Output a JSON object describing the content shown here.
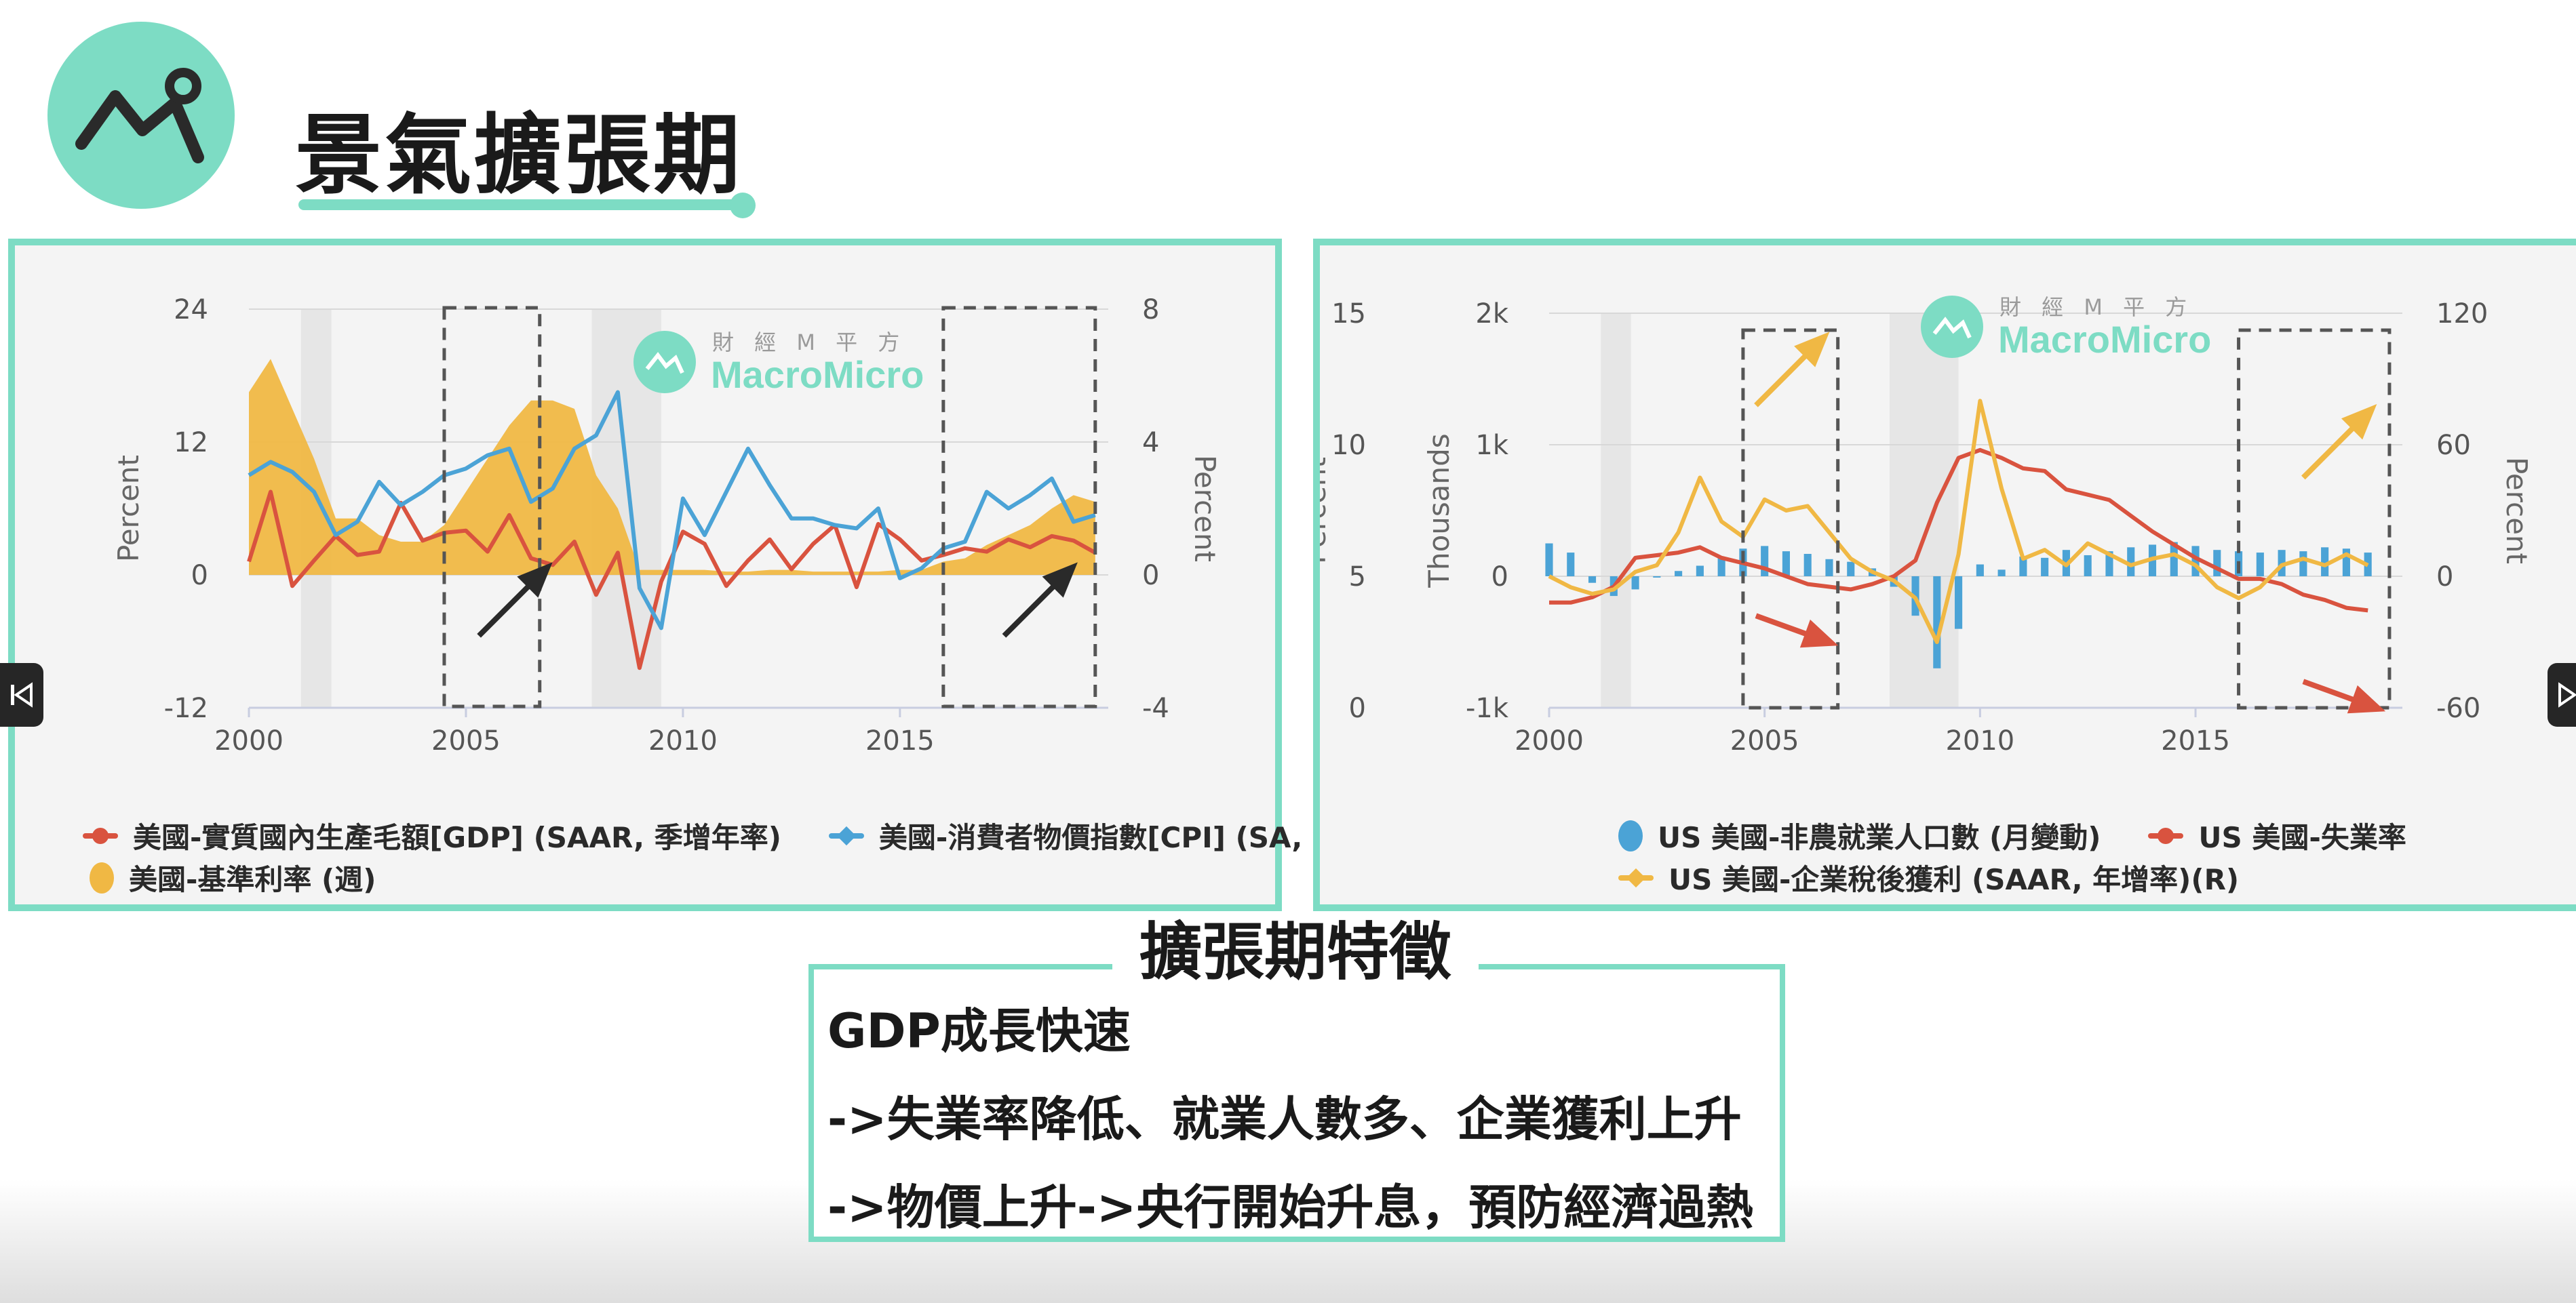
{
  "header": {
    "title": "景氣擴張期",
    "logo_icon": "chart-trend-icon"
  },
  "brand": {
    "name_cn": "財 經 M 平 方",
    "name_en": "MacroMicro",
    "accent": "#7ddcc4"
  },
  "features": {
    "title": "擴張期特徵",
    "lines": [
      "GDP成長快速",
      "->失業率降低、就業人數多、企業獲利上升",
      "->物價上升->央行開始升息，預防經濟過熱"
    ]
  },
  "nav": {
    "prev_icon": "skip-previous-icon",
    "next_icon": "skip-next-icon"
  },
  "chart_data": [
    {
      "type": "line",
      "x": [
        2000.0,
        2000.5,
        2001.0,
        2001.5,
        2002.0,
        2002.5,
        2003.0,
        2003.5,
        2004.0,
        2004.5,
        2005.0,
        2005.5,
        2006.0,
        2006.5,
        2007.0,
        2007.5,
        2008.0,
        2008.5,
        2009.0,
        2009.5,
        2010.0,
        2010.5,
        2011.0,
        2011.5,
        2012.0,
        2012.5,
        2013.0,
        2013.5,
        2014.0,
        2014.5,
        2015.0,
        2015.5,
        2016.0,
        2016.5,
        2017.0,
        2017.5,
        2018.0,
        2018.5,
        2019.0,
        2019.5
      ],
      "xlabel": "",
      "ylabel": "Percent",
      "y2label": "Percent",
      "xlim": [
        2000,
        2019.8
      ],
      "xticks": [
        "2000",
        "2005",
        "2010",
        "2015"
      ],
      "ylim": [
        -12,
        24
      ],
      "yticks": [
        "24",
        "12",
        "0",
        "-12"
      ],
      "y2lim": [
        -4,
        8
      ],
      "y2ticks": [
        "8",
        "4",
        "0",
        "-4"
      ],
      "recessions": [
        [
          2001.2,
          2001.9
        ],
        [
          2007.9,
          2009.5
        ]
      ],
      "highlight_boxes": [
        [
          2004.5,
          2006.7
        ],
        [
          2016.0,
          2019.5
        ]
      ],
      "series": [
        {
          "name": "美國-實質國內生產毛額[GDP] (SAAR, 季增年率)",
          "color": "#d9533f",
          "axis": "left",
          "values": [
            1.2,
            7.5,
            -1.0,
            1.3,
            3.5,
            1.8,
            2.1,
            6.5,
            3.1,
            3.8,
            4.0,
            2.1,
            5.4,
            1.5,
            0.9,
            3.0,
            -1.8,
            2.0,
            -8.4,
            -0.6,
            3.9,
            2.8,
            -1.0,
            1.3,
            3.2,
            0.5,
            2.8,
            4.5,
            -1.1,
            4.6,
            3.2,
            1.3,
            1.8,
            2.4,
            2.1,
            3.2,
            2.5,
            3.5,
            3.1,
            2.0
          ]
        },
        {
          "name": "美國-消費者物價指數[CPI] (SA, 年增率)",
          "color": "#4ba3d6",
          "axis": "right",
          "values": [
            3.0,
            3.4,
            3.1,
            2.5,
            1.2,
            1.6,
            2.8,
            2.1,
            2.5,
            3.0,
            3.2,
            3.6,
            3.8,
            2.2,
            2.6,
            3.8,
            4.2,
            5.5,
            -0.4,
            -1.6,
            2.3,
            1.2,
            2.5,
            3.8,
            2.7,
            1.7,
            1.7,
            1.5,
            1.4,
            2.0,
            -0.1,
            0.2,
            0.8,
            1.0,
            2.5,
            2.0,
            2.4,
            2.9,
            1.6,
            1.8
          ]
        },
        {
          "name": "美國-基準利率 (週)",
          "color": "#f0b844",
          "axis": "right",
          "kind": "area",
          "values": [
            5.5,
            6.5,
            5.0,
            3.5,
            1.7,
            1.7,
            1.2,
            1.0,
            1.0,
            1.5,
            2.5,
            3.5,
            4.5,
            5.25,
            5.25,
            5.0,
            3.0,
            2.0,
            0.15,
            0.15,
            0.15,
            0.15,
            0.1,
            0.1,
            0.15,
            0.15,
            0.1,
            0.1,
            0.1,
            0.1,
            0.15,
            0.15,
            0.4,
            0.5,
            0.9,
            1.2,
            1.5,
            2.0,
            2.4,
            2.2
          ]
        }
      ],
      "annotations": [
        {
          "type": "arrow-up",
          "color": "#2a2a2a",
          "at": [
            2005.3,
            -5.5
          ]
        },
        {
          "type": "arrow-up",
          "color": "#2a2a2a",
          "at": [
            2017.4,
            -5.5
          ]
        }
      ]
    },
    {
      "type": "bar",
      "x": [
        2000.0,
        2000.5,
        2001.0,
        2001.5,
        2002.0,
        2002.5,
        2003.0,
        2003.5,
        2004.0,
        2004.5,
        2005.0,
        2005.5,
        2006.0,
        2006.5,
        2007.0,
        2007.5,
        2008.0,
        2008.5,
        2009.0,
        2009.5,
        2010.0,
        2010.5,
        2011.0,
        2011.5,
        2012.0,
        2012.5,
        2013.0,
        2013.5,
        2014.0,
        2014.5,
        2015.0,
        2015.5,
        2016.0,
        2016.5,
        2017.0,
        2017.5,
        2018.0,
        2018.5,
        2019.0
      ],
      "xlabel": "",
      "ylabel": "Thousands",
      "y2label": "Percent",
      "y3label": "Percent",
      "xlim": [
        2000,
        2019.8
      ],
      "xticks": [
        "2000",
        "2005",
        "2010",
        "2015"
      ],
      "ylim": [
        -1000,
        2000
      ],
      "yticks": [
        "2k",
        "1k",
        "0",
        "-1k"
      ],
      "y3lim": [
        0,
        15
      ],
      "y3ticks": [
        "15",
        "10",
        "5",
        "0"
      ],
      "y2lim": [
        -60,
        120
      ],
      "y2ticks": [
        "120",
        "60",
        "0",
        "-60"
      ],
      "recessions": [
        [
          2001.2,
          2001.9
        ],
        [
          2007.9,
          2009.5
        ]
      ],
      "highlight_boxes": [
        [
          2004.5,
          2006.7
        ],
        [
          2016.0,
          2019.5
        ]
      ],
      "series": [
        {
          "name": "US 美國-非農就業人口數 (月變動)",
          "color": "#4ba3d6",
          "axis": "left",
          "kind": "bar",
          "values": [
            250,
            180,
            -50,
            -150,
            -100,
            -10,
            40,
            80,
            140,
            210,
            230,
            190,
            170,
            130,
            110,
            60,
            -80,
            -300,
            -700,
            -400,
            90,
            50,
            150,
            140,
            200,
            160,
            190,
            220,
            240,
            260,
            230,
            200,
            190,
            180,
            200,
            190,
            220,
            210,
            180
          ]
        },
        {
          "name": "US 美國-失業率",
          "color": "#d9533f",
          "axis": "y3",
          "kind": "line",
          "values": [
            4.0,
            4.0,
            4.2,
            4.6,
            5.7,
            5.8,
            5.9,
            6.1,
            5.7,
            5.5,
            5.3,
            5.0,
            4.7,
            4.6,
            4.5,
            4.7,
            5.0,
            5.6,
            7.8,
            9.5,
            9.8,
            9.5,
            9.1,
            9.0,
            8.3,
            8.1,
            7.9,
            7.3,
            6.7,
            6.2,
            5.7,
            5.3,
            4.9,
            4.9,
            4.7,
            4.3,
            4.1,
            3.8,
            3.7
          ]
        },
        {
          "name": "US 美國-企業稅後獲利 (SAAR, 年增率)(R)",
          "color": "#f0b844",
          "axis": "right",
          "kind": "line",
          "values": [
            0,
            -5,
            -8,
            -6,
            2,
            5,
            20,
            45,
            25,
            18,
            35,
            30,
            32,
            20,
            8,
            2,
            -2,
            -10,
            -30,
            10,
            80,
            40,
            8,
            12,
            5,
            15,
            10,
            5,
            8,
            10,
            5,
            -5,
            -10,
            -5,
            5,
            8,
            5,
            10,
            5
          ]
        }
      ],
      "annotations": [
        {
          "type": "arrow-up",
          "color": "#f0b844",
          "at": [
            2004.8,
            1300
          ]
        },
        {
          "type": "arrow-down",
          "color": "#d9533f",
          "at": [
            2004.8,
            -300
          ]
        },
        {
          "type": "arrow-up",
          "color": "#f0b844",
          "at": [
            2017.5,
            750
          ]
        },
        {
          "type": "arrow-down",
          "color": "#d9533f",
          "at": [
            2017.5,
            -800
          ]
        }
      ]
    }
  ]
}
